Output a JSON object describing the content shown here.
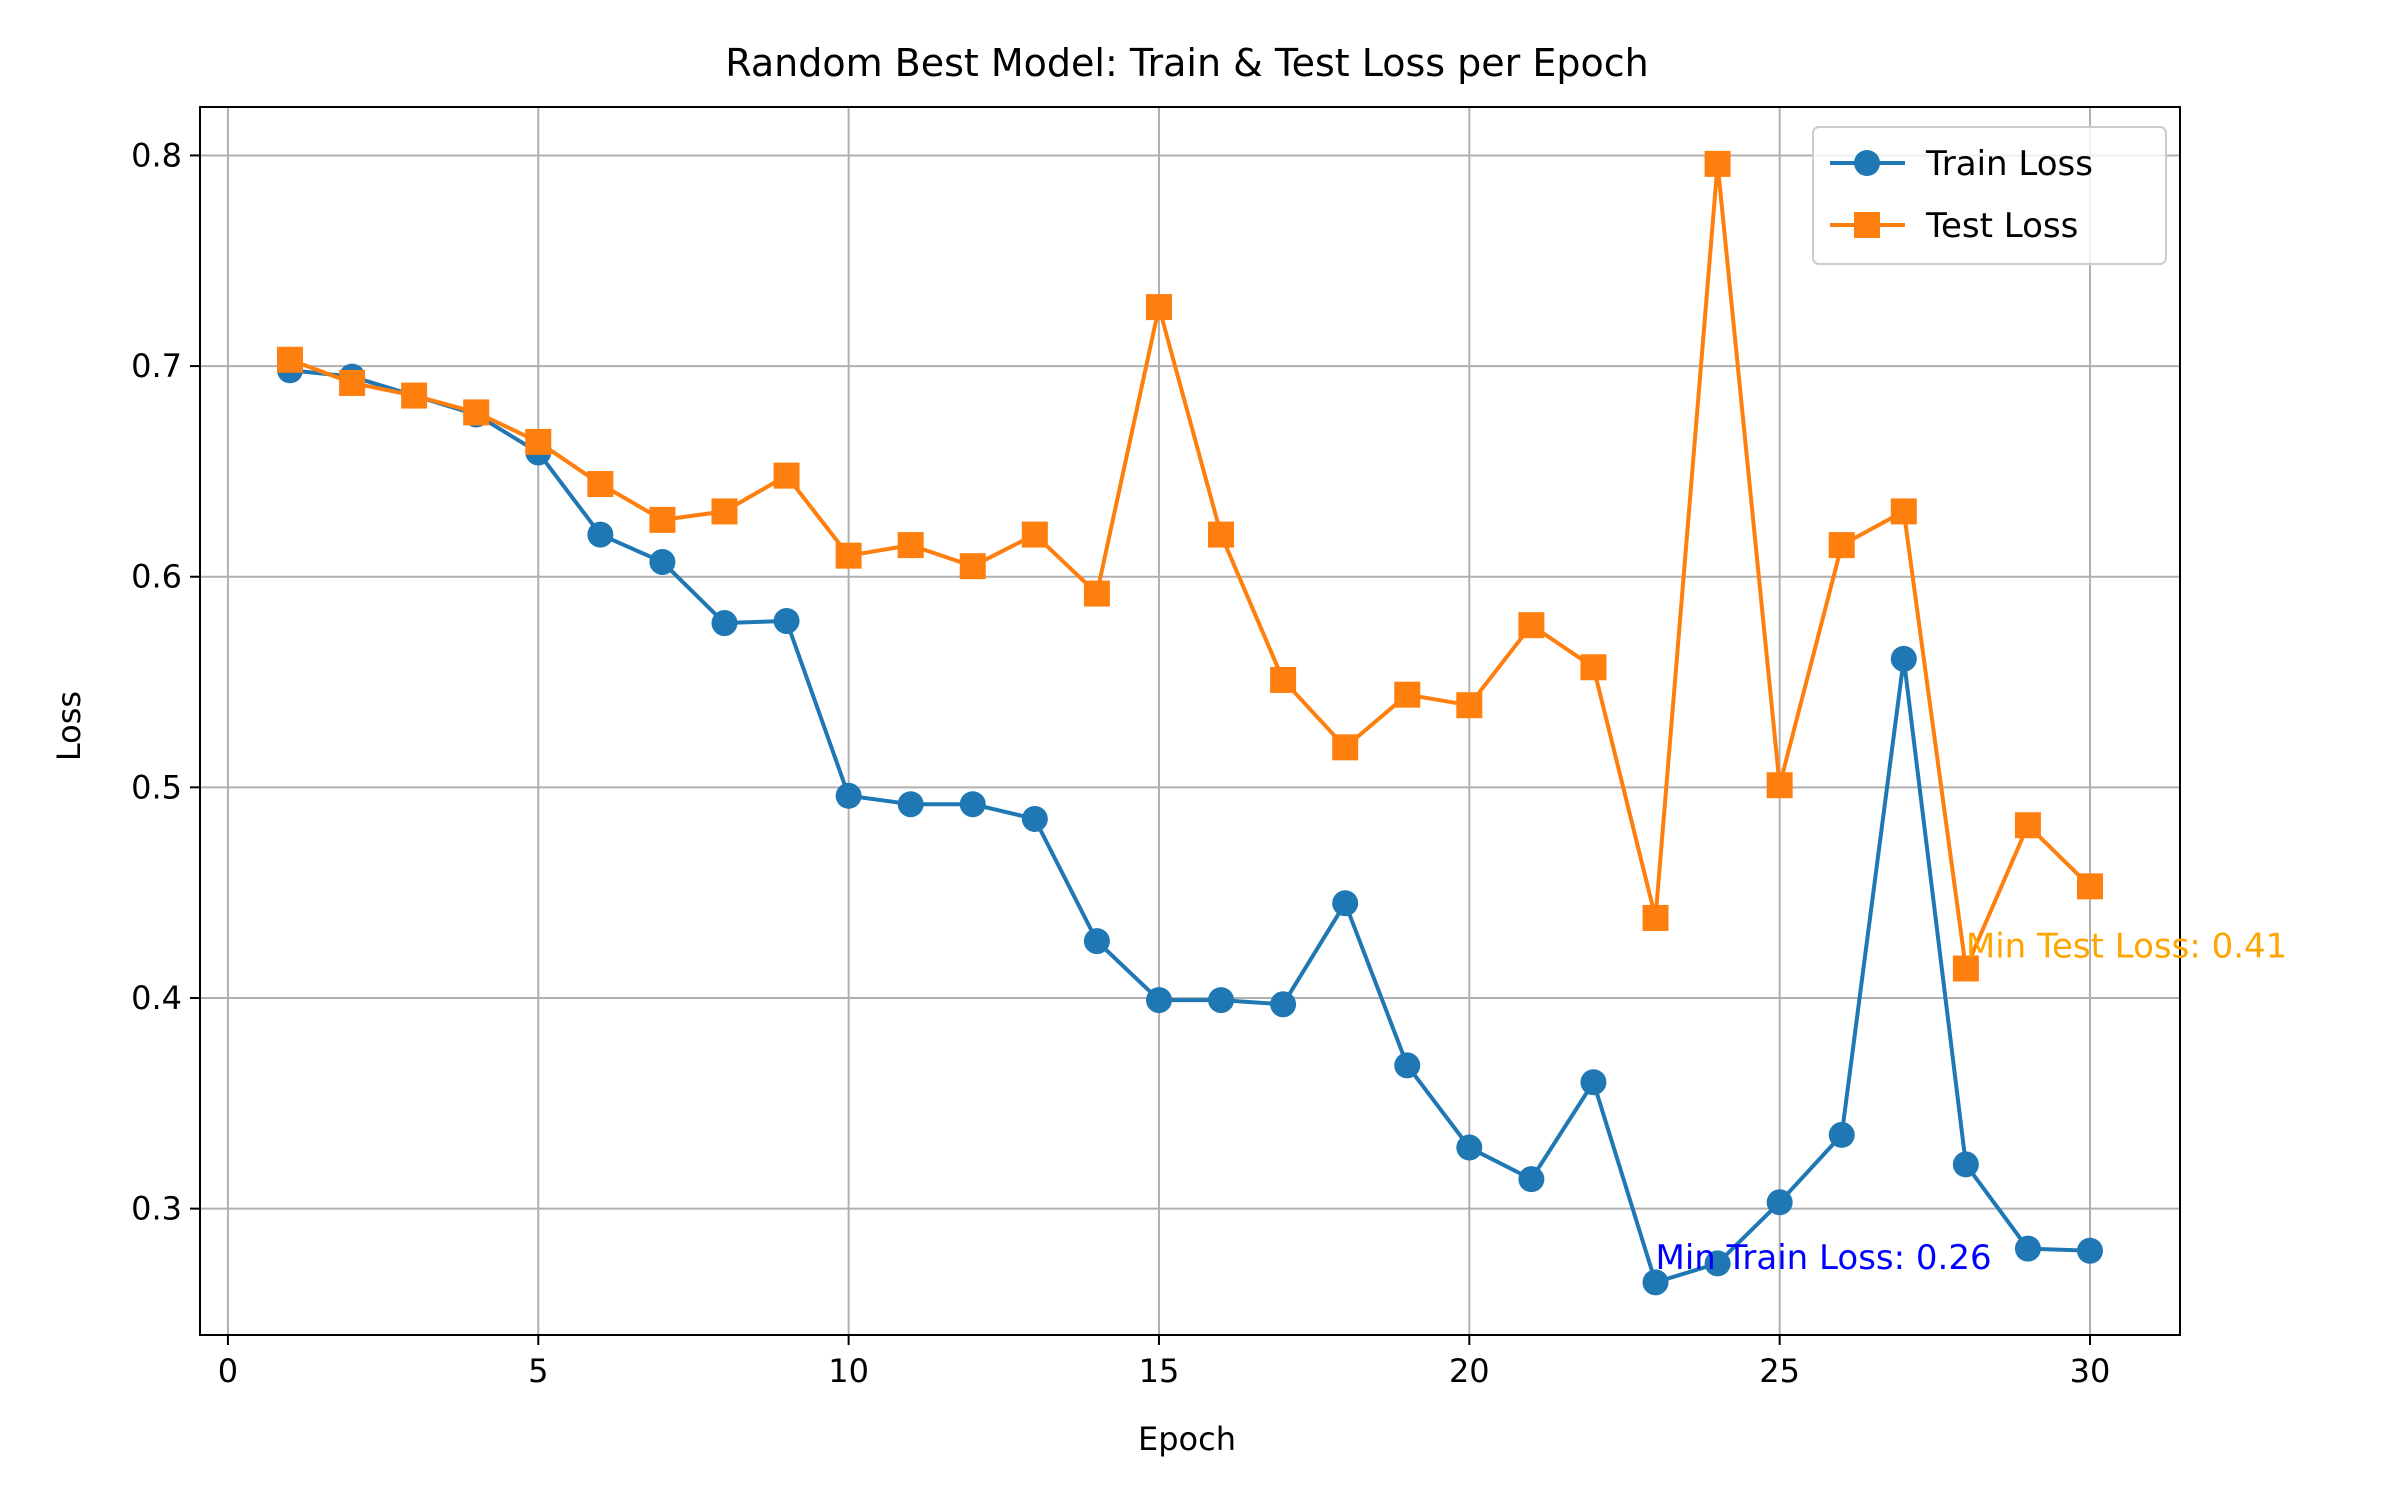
{
  "chart_data": {
    "type": "line",
    "title": "Random Best Model: Train & Test Loss per Epoch",
    "xlabel": "Epoch",
    "ylabel": "Loss",
    "xlim": [
      -0.45,
      31.45
    ],
    "ylim": [
      0.24,
      0.823
    ],
    "xticks": [
      0,
      5,
      10,
      15,
      20,
      25,
      30
    ],
    "xtick_labels": [
      "0",
      "5",
      "10",
      "15",
      "20",
      "25",
      "30"
    ],
    "yticks": [
      0.3,
      0.4,
      0.5,
      0.6,
      0.7,
      0.8
    ],
    "ytick_labels": [
      "0.3",
      "0.4",
      "0.5",
      "0.6",
      "0.7",
      "0.8"
    ],
    "grid": true,
    "legend_position": "top-right",
    "x": [
      1,
      2,
      3,
      4,
      5,
      6,
      7,
      8,
      9,
      10,
      11,
      12,
      13,
      14,
      15,
      16,
      17,
      18,
      19,
      20,
      21,
      22,
      23,
      24,
      25,
      26,
      27,
      28,
      29,
      30
    ],
    "series": [
      {
        "name": "Train Loss",
        "color": "#1f77b4",
        "marker": "circle",
        "values": [
          0.698,
          0.695,
          0.686,
          0.677,
          0.659,
          0.62,
          0.607,
          0.578,
          0.579,
          0.496,
          0.492,
          0.492,
          0.485,
          0.427,
          0.399,
          0.399,
          0.397,
          0.445,
          0.368,
          0.329,
          0.314,
          0.36,
          0.265,
          0.274,
          0.303,
          0.335,
          0.561,
          0.321,
          0.281,
          0.28
        ]
      },
      {
        "name": "Test Loss",
        "color": "#ff7f0e",
        "marker": "square",
        "values": [
          0.703,
          0.692,
          0.686,
          0.678,
          0.664,
          0.644,
          0.627,
          0.631,
          0.648,
          0.61,
          0.615,
          0.605,
          0.62,
          0.592,
          0.728,
          0.62,
          0.551,
          0.519,
          0.544,
          0.539,
          0.577,
          0.557,
          0.438,
          0.796,
          0.501,
          0.615,
          0.631,
          0.414,
          0.482,
          0.453
        ]
      }
    ],
    "annotations": [
      {
        "text": "Min Train Loss: 0.26",
        "x": 23,
        "y": 0.277,
        "color": "#0000ff"
      },
      {
        "text": "Min Test Loss: 0.41",
        "x": 28,
        "y": 0.425,
        "color": "#ffa500"
      }
    ]
  }
}
